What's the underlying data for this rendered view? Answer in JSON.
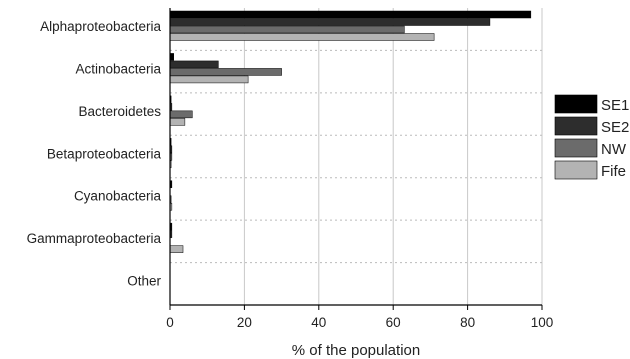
{
  "chart_data": {
    "type": "bar",
    "orientation": "horizontal",
    "categories": [
      "Alphaproteobacteria",
      "Actinobacteria",
      "Bacteroidetes",
      "Betaproteobacteria",
      "Cyanobacteria",
      "Gammaproteobacteria",
      "Other"
    ],
    "series": [
      {
        "name": "SE1",
        "color": "#000000",
        "values": [
          97,
          1,
          0.3,
          0.3,
          0.5,
          0.5,
          0
        ]
      },
      {
        "name": "SE2",
        "color": "#2d2d2d",
        "values": [
          86,
          13,
          0.5,
          0.5,
          0,
          0.5,
          0
        ]
      },
      {
        "name": "NW",
        "color": "#6b6b6b",
        "values": [
          63,
          30,
          6,
          0.5,
          0.3,
          0,
          0
        ]
      },
      {
        "name": "Fife",
        "color": "#b3b3b3",
        "values": [
          71,
          21,
          4,
          0.3,
          0.5,
          3.5,
          0
        ]
      }
    ],
    "xlabel": "% of the population",
    "ylabel": "",
    "title": "",
    "xlim": [
      0,
      100
    ],
    "xticks": [
      "0",
      "20",
      "40",
      "60",
      "80",
      "100"
    ],
    "grid": "vertical",
    "legend": "right"
  }
}
